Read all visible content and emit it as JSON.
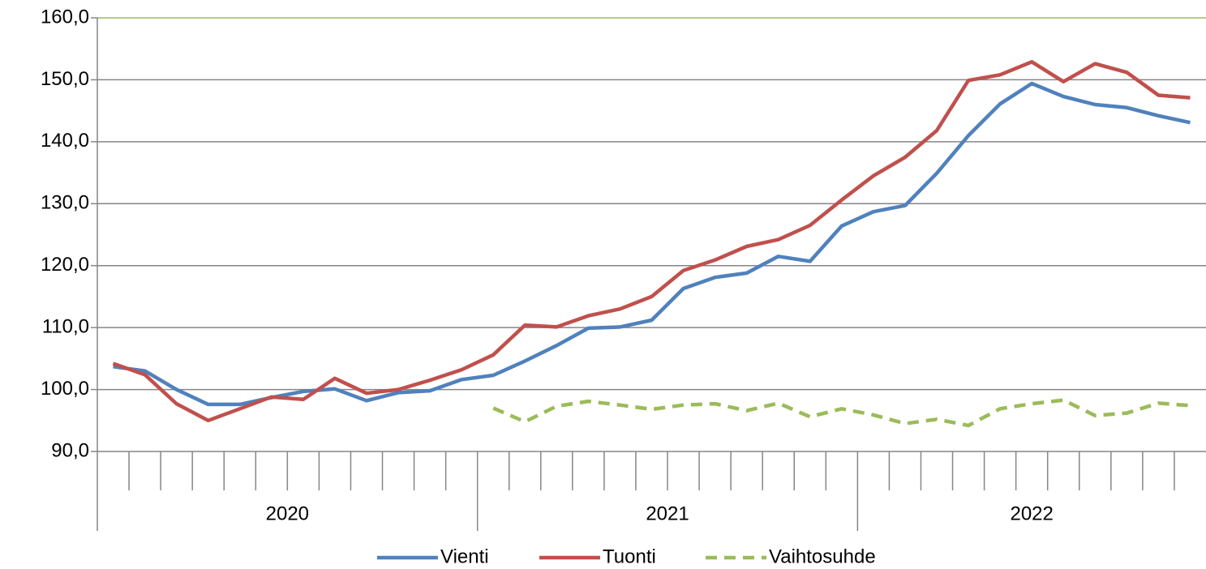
{
  "chart_data": {
    "type": "line",
    "categories": [
      null,
      null,
      null,
      null,
      null,
      null,
      null,
      null,
      null,
      null,
      null,
      null,
      null,
      null,
      null,
      null,
      null,
      null,
      null,
      null,
      null,
      null,
      null,
      null,
      null,
      null,
      null,
      null,
      null,
      null,
      null,
      null,
      null,
      null,
      null
    ],
    "groups": [
      {
        "label": "2020",
        "count": 12
      },
      {
        "label": "2021",
        "count": 12
      },
      {
        "label": "2022",
        "count": 11
      }
    ],
    "series": [
      {
        "name": "Vienti",
        "color": "#4f81bd",
        "dash": false,
        "values": [
          103.7,
          103.0,
          100.0,
          97.6,
          97.6,
          98.7,
          99.7,
          100.1,
          98.2,
          99.5,
          99.8,
          101.6,
          102.3,
          104.6,
          107.1,
          109.9,
          110.1,
          111.2,
          116.3,
          118.1,
          118.8,
          121.5,
          120.7,
          126.4,
          128.7,
          129.7,
          134.9,
          141.0,
          146.1,
          149.4,
          147.3,
          146.0,
          145.5,
          144.2,
          143.1
        ]
      },
      {
        "name": "Tuonti",
        "color": "#c0504d",
        "dash": false,
        "values": [
          104.2,
          102.4,
          97.7,
          95.0,
          96.9,
          98.8,
          98.4,
          101.8,
          99.4,
          100.0,
          101.5,
          103.2,
          105.6,
          110.4,
          110.1,
          111.9,
          113.0,
          115.0,
          119.2,
          120.9,
          123.1,
          124.2,
          126.5,
          130.6,
          134.5,
          137.5,
          141.8,
          149.9,
          150.8,
          152.9,
          149.7,
          152.6,
          151.2,
          147.5,
          147.1
        ]
      },
      {
        "name": "Vaihtosuhde",
        "color": "#9bbb59",
        "dash": true,
        "values": [
          null,
          null,
          null,
          null,
          null,
          null,
          null,
          null,
          null,
          null,
          null,
          null,
          97.0,
          94.8,
          97.3,
          98.1,
          97.5,
          96.8,
          97.5,
          97.7,
          96.6,
          97.8,
          95.6,
          96.9,
          95.9,
          94.5,
          95.2,
          94.2,
          96.9,
          97.7,
          98.3,
          95.8,
          96.2,
          97.8,
          97.4
        ]
      }
    ],
    "ylim": [
      90,
      160
    ],
    "yticks": [
      {
        "value": 90,
        "label": "90,0"
      },
      {
        "value": 100,
        "label": "100,0"
      },
      {
        "value": 110,
        "label": "110,0"
      },
      {
        "value": 120,
        "label": "120,0"
      },
      {
        "value": 130,
        "label": "130,0"
      },
      {
        "value": 140,
        "label": "140,0"
      },
      {
        "value": 150,
        "label": "150,0"
      },
      {
        "value": 160,
        "label": "160,0"
      }
    ],
    "grid": true,
    "legend": "bottom"
  }
}
